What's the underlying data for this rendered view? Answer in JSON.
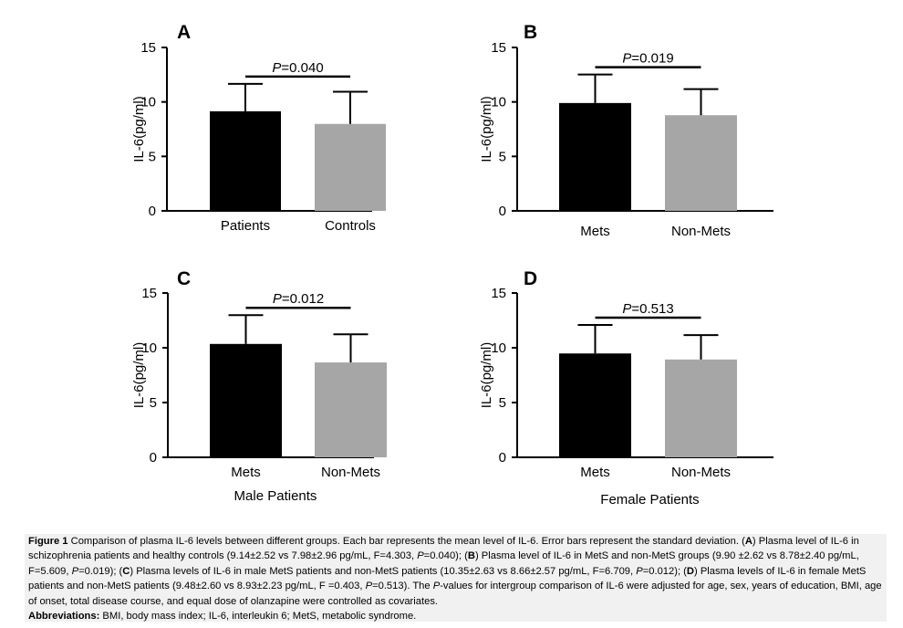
{
  "colors": {
    "bar_dark": "#000000",
    "bar_light": "#a6a6a6",
    "axis": "#000000"
  },
  "chart_data": [
    {
      "panel": "A",
      "type": "bar",
      "ylabel": "IL-6(pg/ml)",
      "xlabel": "",
      "ylim": [
        0,
        15
      ],
      "yticks": [
        "0",
        "5",
        "10",
        "15"
      ],
      "categories": [
        "Patients",
        "Controls"
      ],
      "values": [
        9.14,
        7.98
      ],
      "errors": [
        2.52,
        2.96
      ],
      "annotation": {
        "p_label": "P",
        "p_value": "=0.040"
      }
    },
    {
      "panel": "B",
      "type": "bar",
      "ylabel": "IL-6(pg/ml)",
      "xlabel": "",
      "ylim": [
        0,
        15
      ],
      "yticks": [
        "0",
        "5",
        "10",
        "15"
      ],
      "categories": [
        "Mets",
        "Non-Mets"
      ],
      "values": [
        9.9,
        8.78
      ],
      "errors": [
        2.62,
        2.4
      ],
      "annotation": {
        "p_label": "P",
        "p_value": "=0.019"
      }
    },
    {
      "panel": "C",
      "type": "bar",
      "ylabel": "IL-6(pg/ml)",
      "xlabel": "Male Patients",
      "ylim": [
        0,
        15
      ],
      "yticks": [
        "0",
        "5",
        "10",
        "15"
      ],
      "categories": [
        "Mets",
        "Non-Mets"
      ],
      "values": [
        10.35,
        8.66
      ],
      "errors": [
        2.63,
        2.57
      ],
      "annotation": {
        "p_label": "P",
        "p_value": "=0.012"
      }
    },
    {
      "panel": "D",
      "type": "bar",
      "ylabel": "IL-6(pg/ml)",
      "xlabel": "Female Patients",
      "ylim": [
        0,
        15
      ],
      "yticks": [
        "0",
        "5",
        "10",
        "15"
      ],
      "categories": [
        "Mets",
        "Non-Mets"
      ],
      "values": [
        9.48,
        8.93
      ],
      "errors": [
        2.6,
        2.23
      ],
      "annotation": {
        "p_label": "P",
        "p_value": "=0.513"
      }
    }
  ],
  "caption": {
    "fig_label": "Figure 1",
    "t1": " Comparison of plasma IL-6 levels between different groups. Each bar represents the mean level of IL-6. Error bars represent the standard deviation. (",
    "a": "A",
    "t2": ") Plasma level of IL-6 in schizophrenia patients and healthy controls (9.14±2.52 vs 7.98±2.96 pg/mL, F=4.303, ",
    "p1": "P",
    "t3": "=0.040); (",
    "b": "B",
    "t4": ") Plasma level of IL-6 in MetS and non-MetS groups (9.90 ±2.62 vs 8.78±2.40 pg/mL, F=5.609, ",
    "p2": "P",
    "t5": "=0.019); (",
    "c": "C",
    "t6": ") Plasma levels of IL-6 in male MetS patients and non-MetS patients (10.35±2.63 vs 8.66±2.57 pg/mL, F=6.709, ",
    "p3": "P",
    "t7": "=0.012); (",
    "d": "D",
    "t8": ") Plasma levels of IL-6 in female MetS patients and non-MetS patients (9.48±2.60 vs 8.93±2.23 pg/mL, F =0.403, ",
    "p4": "P",
    "t9": "=0.513). The ",
    "p5": "P",
    "t10": "-values for intergroup comparison of IL-6 were adjusted for age, sex, years of education, BMI, age of onset, total disease course, and equal dose of olanzapine were controlled as covariates.",
    "abbr_label": "Abbreviations:",
    "abbr_text": " BMI, body mass index; IL-6, interleukin 6; MetS, metabolic syndrome."
  }
}
